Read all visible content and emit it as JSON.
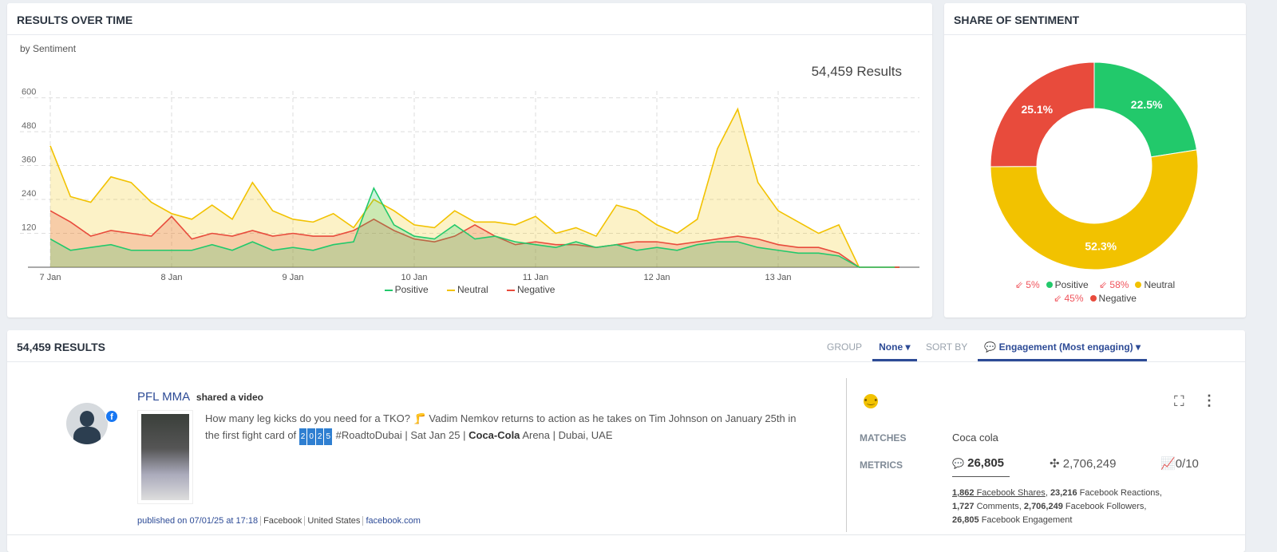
{
  "results_over_time": {
    "title": "RESULTS OVER TIME",
    "subtitle": "by Sentiment",
    "total": "54,459 Results"
  },
  "share": {
    "title": "SHARE OF SENTIMENT",
    "legend": [
      {
        "change": "5%",
        "label": "Positive",
        "color": "#22c96b"
      },
      {
        "change": "58%",
        "label": "Neutral",
        "color": "#f2c200"
      },
      {
        "change": "45%",
        "label": "Negative",
        "color": "#e84b3c"
      }
    ]
  },
  "results": {
    "title": "54,459 RESULTS",
    "group_label": "GROUP",
    "group_value": "None",
    "sort_label": "SORT BY",
    "sort_value": "Engagement (Most engaging)"
  },
  "post": {
    "author": "PFL MMA",
    "action": "shared a video",
    "text_1": "How many leg kicks do you need for a TKO? 🦵 Vadim Nemkov returns to action as he takes on Tim Johnson on January 25th in the first fight card of ",
    "keys": [
      "2",
      "0",
      "2",
      "5"
    ],
    "text_2": " #RoadtoDubai | Sat Jan 25 | ",
    "brand": "Coca-Cola",
    "text_3": " Arena | Dubai, UAE",
    "published": "published on 07/01/25 at 17:18",
    "source": "Facebook",
    "country": "United States",
    "domain": "facebook.com",
    "matches_label": "MATCHES",
    "matches": "Coca cola",
    "metrics_label": "METRICS",
    "engagement": "26,805",
    "reach": "2,706,249",
    "score": "0/10",
    "d1": "1,862",
    "d1l": " Facebook Shares",
    "sep": ", ",
    "d2": "23,216",
    "d2l": " Facebook Reactions,",
    "d3": "1,727",
    "d3l": " Comments, ",
    "d4": "2,706,249",
    "d4l": " Facebook Followers,",
    "d5": "26,805",
    "d5l": " Facebook Engagement"
  },
  "chart_data": [
    {
      "type": "area",
      "title": "RESULTS OVER TIME",
      "subtitle": "by Sentiment",
      "ylim": [
        0,
        650
      ],
      "yticks": [
        120,
        240,
        360,
        480,
        600
      ],
      "xticks": [
        "7 Jan",
        "8 Jan",
        "9 Jan",
        "10 Jan",
        "11 Jan",
        "12 Jan",
        "13 Jan"
      ],
      "grid": true,
      "legend": "bottom",
      "x": [
        "2025-01-07T00:00",
        "2025-01-07T04:00",
        "2025-01-07T08:00",
        "2025-01-07T12:00",
        "2025-01-07T16:00",
        "2025-01-07T20:00",
        "2025-01-08T00:00",
        "2025-01-08T04:00",
        "2025-01-08T08:00",
        "2025-01-08T12:00",
        "2025-01-08T16:00",
        "2025-01-08T20:00",
        "2025-01-09T00:00",
        "2025-01-09T04:00",
        "2025-01-09T08:00",
        "2025-01-09T12:00",
        "2025-01-09T16:00",
        "2025-01-09T20:00",
        "2025-01-10T00:00",
        "2025-01-10T04:00",
        "2025-01-10T08:00",
        "2025-01-10T12:00",
        "2025-01-10T16:00",
        "2025-01-10T20:00",
        "2025-01-11T00:00",
        "2025-01-11T04:00",
        "2025-01-11T08:00",
        "2025-01-11T12:00",
        "2025-01-11T16:00",
        "2025-01-11T20:00",
        "2025-01-12T00:00",
        "2025-01-12T04:00",
        "2025-01-12T08:00",
        "2025-01-12T12:00",
        "2025-01-12T16:00",
        "2025-01-12T20:00",
        "2025-01-13T00:00",
        "2025-01-13T04:00",
        "2025-01-13T08:00",
        "2025-01-13T12:00",
        "2025-01-13T16:00",
        "2025-01-13T20:00",
        "2025-01-14T00:00"
      ],
      "series": [
        {
          "name": "Neutral",
          "color": "#f2c200",
          "values": [
            430,
            250,
            230,
            320,
            300,
            230,
            190,
            170,
            220,
            170,
            300,
            200,
            170,
            160,
            190,
            140,
            240,
            200,
            150,
            140,
            200,
            160,
            160,
            150,
            180,
            120,
            140,
            110,
            220,
            200,
            150,
            120,
            170,
            420,
            560,
            300,
            200,
            160,
            120,
            150,
            0,
            0,
            0
          ]
        },
        {
          "name": "Negative",
          "color": "#e84b3c",
          "values": [
            200,
            160,
            110,
            130,
            120,
            110,
            180,
            100,
            120,
            110,
            130,
            110,
            120,
            110,
            110,
            130,
            170,
            130,
            100,
            90,
            110,
            150,
            110,
            80,
            90,
            80,
            80,
            70,
            80,
            90,
            90,
            80,
            90,
            100,
            110,
            100,
            80,
            70,
            70,
            50,
            0,
            0,
            0
          ]
        },
        {
          "name": "Positive",
          "color": "#22c96b",
          "values": [
            100,
            60,
            70,
            80,
            60,
            60,
            60,
            60,
            80,
            60,
            90,
            60,
            70,
            60,
            80,
            90,
            280,
            150,
            110,
            100,
            150,
            100,
            110,
            90,
            80,
            70,
            90,
            70,
            80,
            60,
            70,
            60,
            80,
            90,
            90,
            70,
            60,
            50,
            50,
            40,
            0,
            0,
            0
          ]
        }
      ]
    },
    {
      "type": "pie",
      "title": "SHARE OF SENTIMENT",
      "categories": [
        "Positive",
        "Neutral",
        "Negative"
      ],
      "values": [
        22.5,
        52.3,
        25.1
      ],
      "labels": [
        "22.5%",
        "52.3%",
        "25.1%"
      ],
      "colors": [
        "#22c96b",
        "#f2c200",
        "#e84b3c"
      ],
      "donut": true
    }
  ]
}
